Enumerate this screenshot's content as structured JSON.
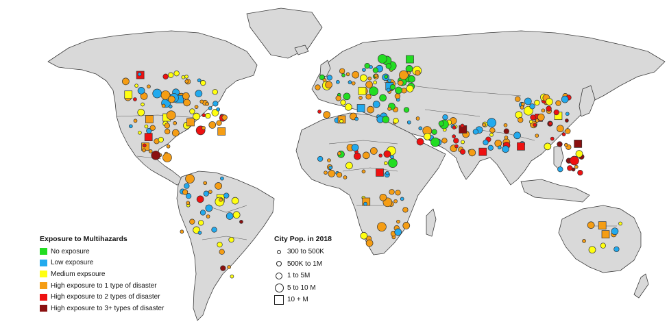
{
  "legend_exposure": {
    "title": "Exposure to Multihazards",
    "items": [
      {
        "label": "No exposure",
        "color": "#22dd22"
      },
      {
        "label": "Low exposure",
        "color": "#22aaee"
      },
      {
        "label": "Medium expsoure",
        "color": "#ffff11"
      },
      {
        "label": "High exposure to 1 type of disaster",
        "color": "#f59d14"
      },
      {
        "label": "High exposure to 2 types of disaster",
        "color": "#ee1111"
      },
      {
        "label": "High exposure to 3+ types of disaster",
        "color": "#8b1010"
      }
    ]
  },
  "legend_population": {
    "title": "City Pop. in 2018",
    "items": [
      {
        "label": "300 to 500K",
        "shape": "circle",
        "size_rank": 1
      },
      {
        "label": "500K to 1M",
        "shape": "circle",
        "size_rank": 2
      },
      {
        "label": "1 to 5M",
        "shape": "circle",
        "size_rank": 3
      },
      {
        "label": "5 to 10 M",
        "shape": "circle",
        "size_rank": 4
      },
      {
        "label": "10 + M",
        "shape": "square",
        "size_rank": 5
      }
    ]
  },
  "map": {
    "land_color": "#d9d9d9",
    "border_color": "#3a3a3a"
  }
}
